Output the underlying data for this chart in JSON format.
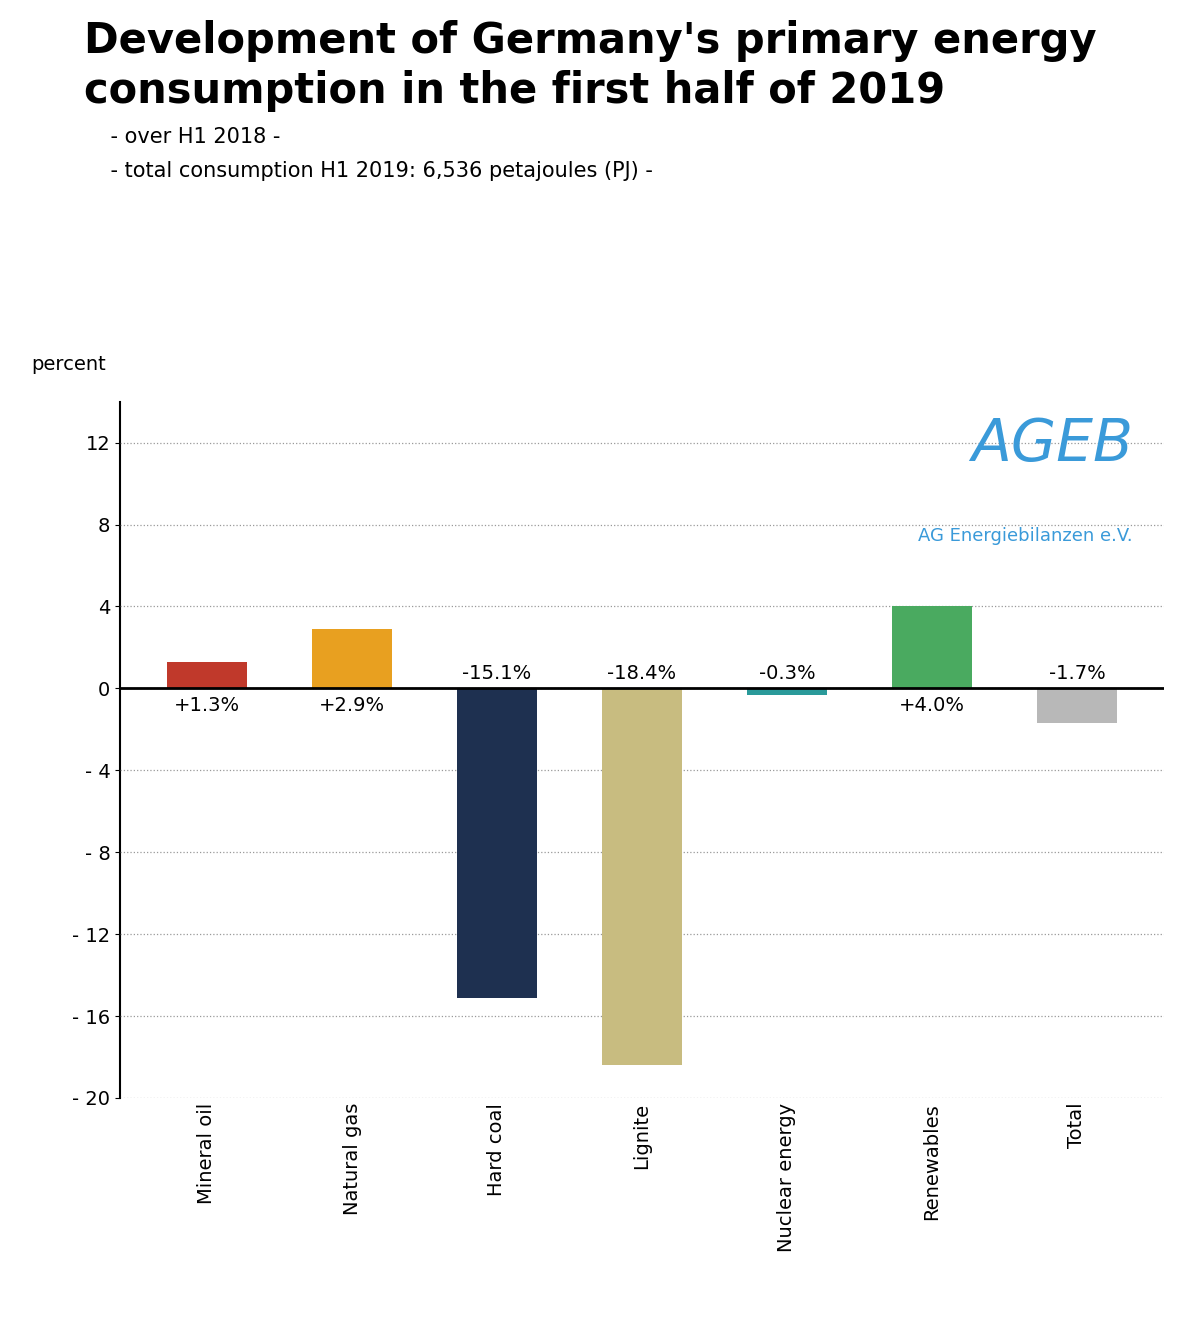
{
  "title_line1": "Development of Germany's primary energy",
  "title_line2": "consumption in the first half of 2019",
  "subtitle1": "    - over H1 2018 -",
  "subtitle2": "    - total consumption H1 2019: 6,536 petajoules (PJ) -",
  "categories": [
    "Mineral oil",
    "Natural gas",
    "Hard coal",
    "Lignite",
    "Nuclear energy",
    "Renewables",
    "Total"
  ],
  "values": [
    1.3,
    2.9,
    -15.1,
    -18.4,
    -0.3,
    4.0,
    -1.7
  ],
  "labels": [
    "+1.3%",
    "+2.9%",
    "-15.1%",
    "-18.4%",
    "-0.3%",
    "+4.0%",
    "-1.7%"
  ],
  "bar_colors": [
    "#c0392b",
    "#e8a020",
    "#1e3050",
    "#c8bc80",
    "#2a9a9a",
    "#4aaa60",
    "#b8b8b8"
  ],
  "ylabel": "percent",
  "ylim_min": -20,
  "ylim_max": 14,
  "yticks": [
    -20,
    -16,
    -12,
    -8,
    -4,
    0,
    4,
    8,
    12
  ],
  "ytick_labels": [
    "- 20",
    "- 16",
    "- 12",
    "- 8",
    "- 4",
    "0",
    "4",
    "8",
    "12"
  ],
  "ageb_text": "AGEB",
  "ageb_subtext": "AG Energiebilanzen e.V.",
  "ageb_color": "#3a9ad9",
  "background_color": "#ffffff",
  "grid_color": "#999999",
  "title_fontsize": 30,
  "subtitle_fontsize": 15,
  "label_fontsize": 14,
  "tick_fontsize": 14,
  "ylabel_fontsize": 14,
  "ageb_fontsize": 42,
  "ageb_sub_fontsize": 13
}
